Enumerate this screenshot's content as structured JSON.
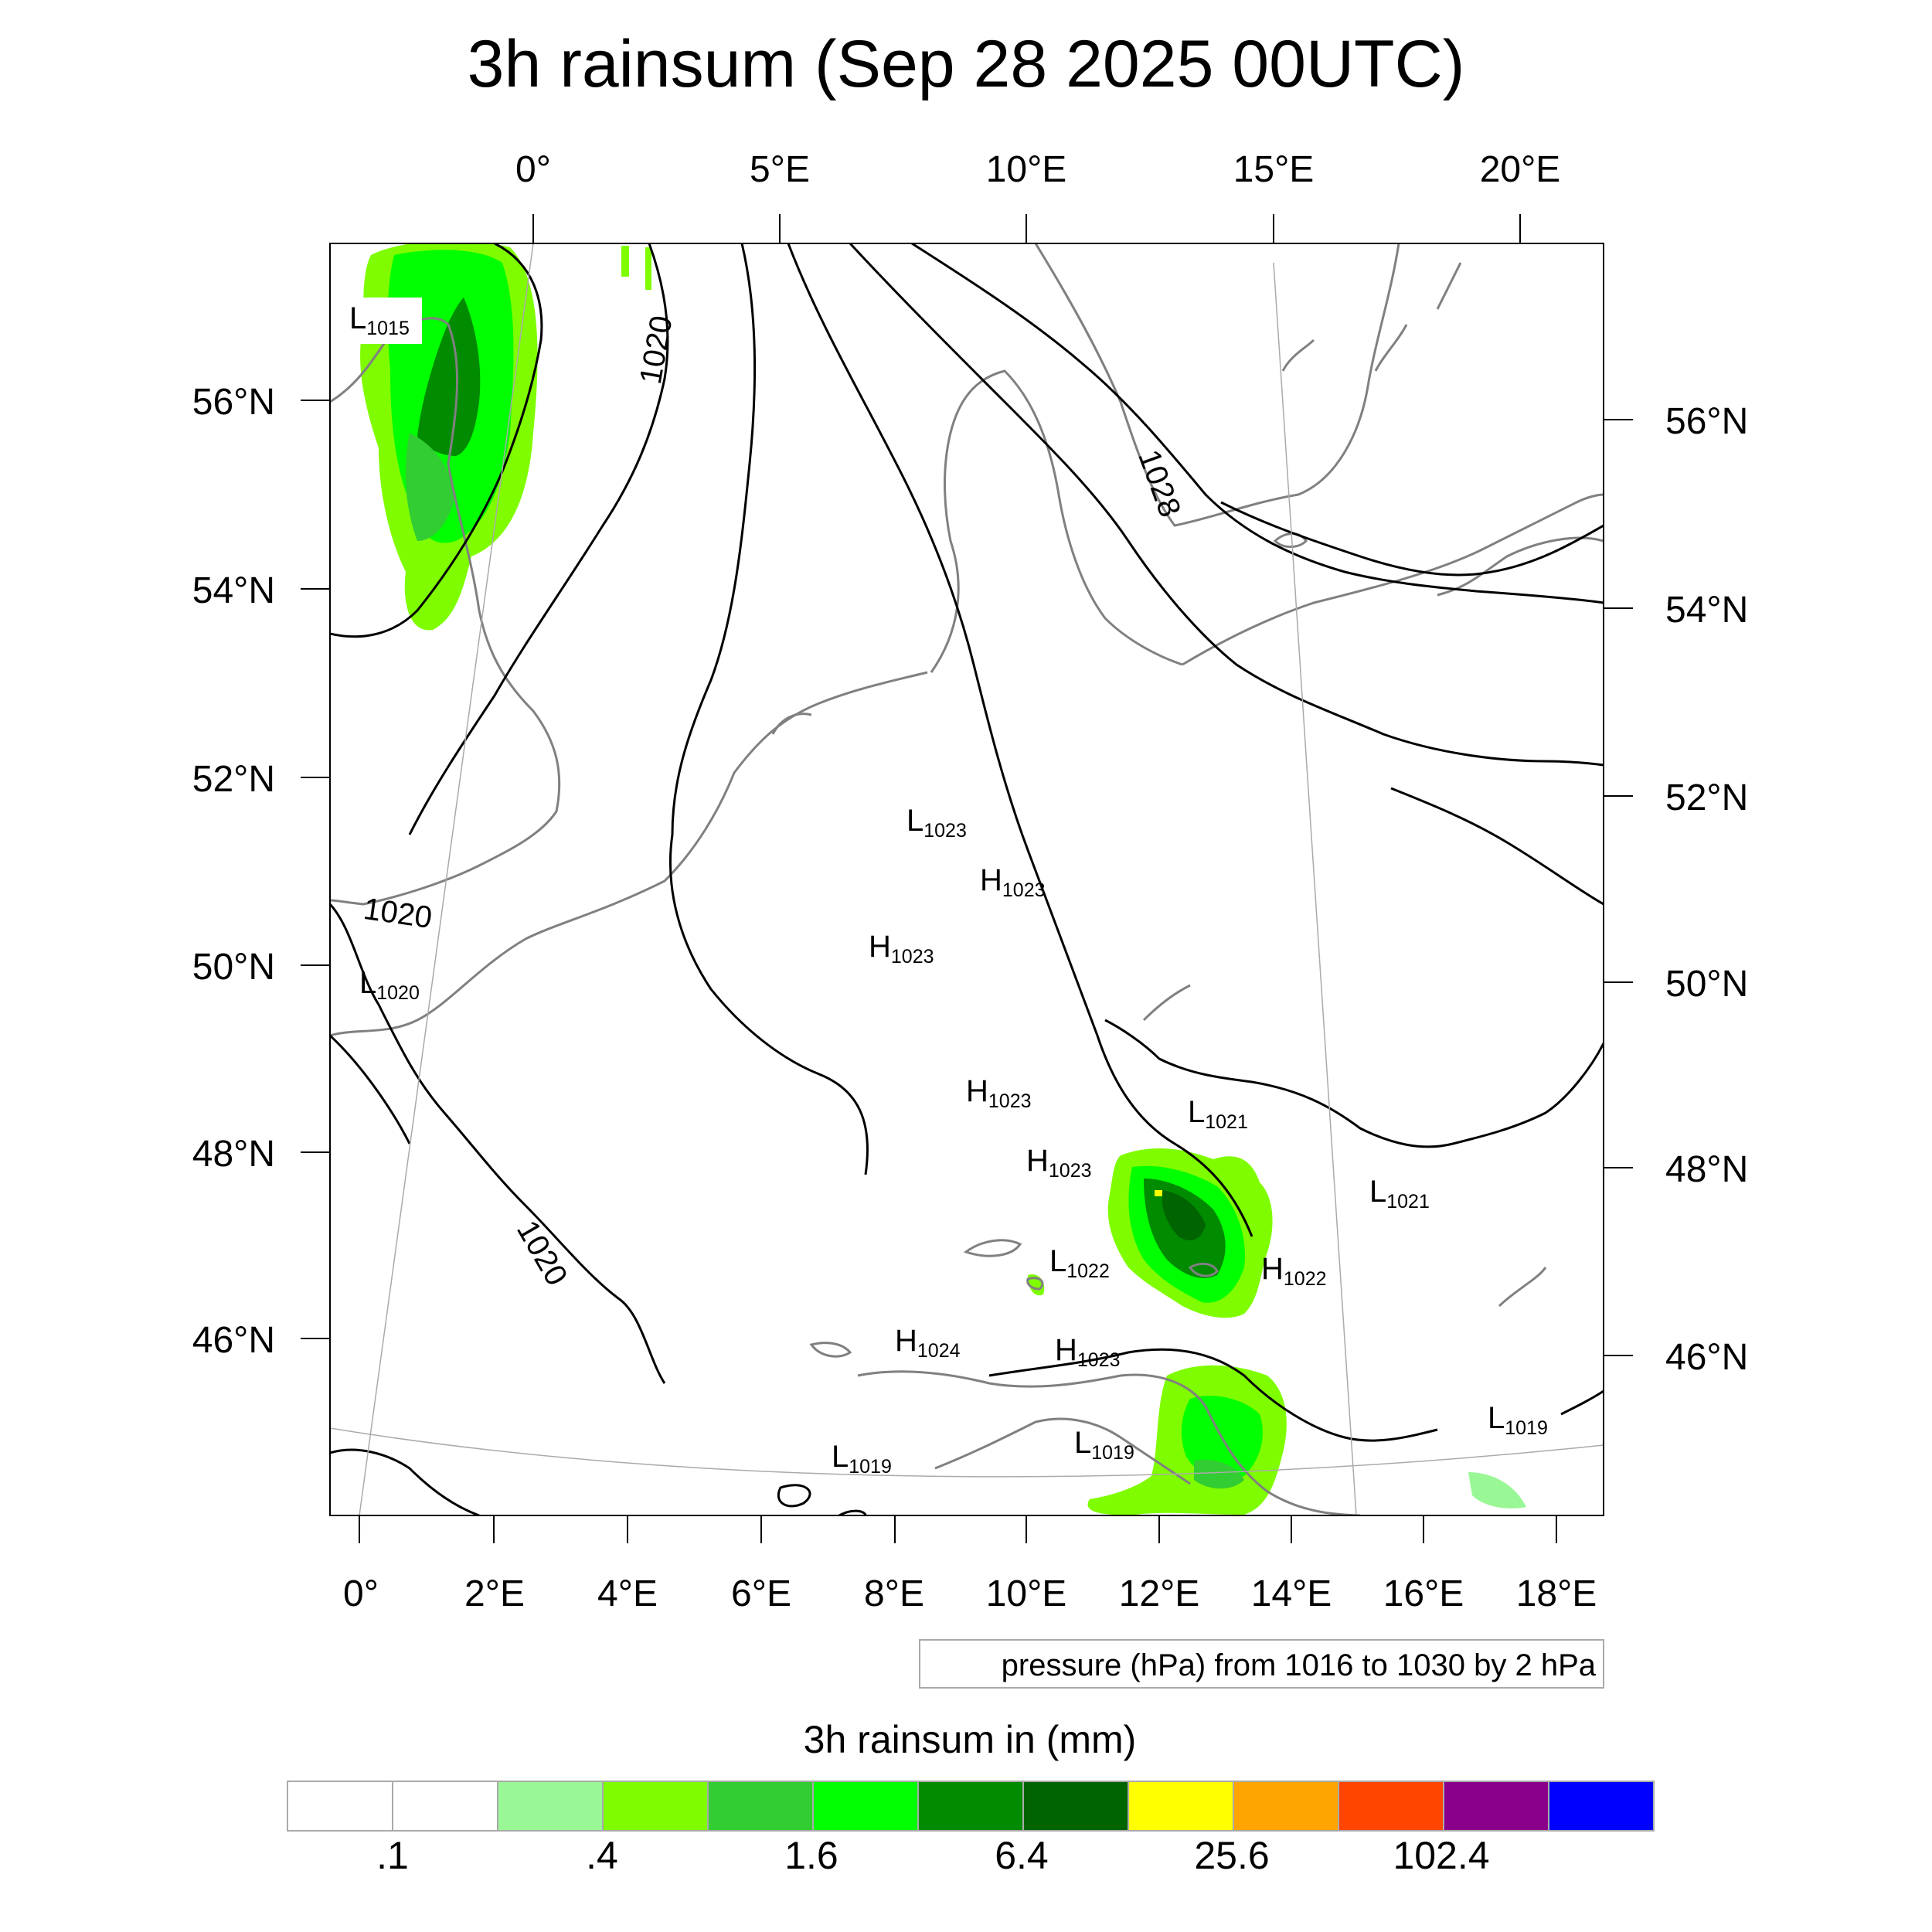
{
  "title": "3h rainsum (Sep 28 2025 00UTC)",
  "top_lon_labels": [
    "0°",
    "5°E",
    "10°E",
    "15°E",
    "20°E"
  ],
  "bottom_lon_labels": [
    "0°",
    "2°E",
    "4°E",
    "6°E",
    "8°E",
    "10°E",
    "12°E",
    "14°E",
    "16°E",
    "18°E"
  ],
  "left_lat_labels": [
    "56°N",
    "54°N",
    "52°N",
    "50°N",
    "48°N",
    "46°N"
  ],
  "right_lat_labels": [
    "56°N",
    "54°N",
    "52°N",
    "50°N",
    "48°N",
    "46°N"
  ],
  "isobar_labels": [
    "1020",
    "1020",
    "1020",
    "1028"
  ],
  "pressure_centers": [
    {
      "type": "L",
      "value": "1015"
    },
    {
      "type": "L",
      "value": "1023"
    },
    {
      "type": "H",
      "value": "1023"
    },
    {
      "type": "H",
      "value": "1023"
    },
    {
      "type": "L",
      "value": "1020"
    },
    {
      "type": "H",
      "value": "1023"
    },
    {
      "type": "L",
      "value": "1021"
    },
    {
      "type": "H",
      "value": "1023"
    },
    {
      "type": "L",
      "value": "1021"
    },
    {
      "type": "L",
      "value": "1022"
    },
    {
      "type": "H",
      "value": "1022"
    },
    {
      "type": "H",
      "value": "1024"
    },
    {
      "type": "H",
      "value": "1023"
    },
    {
      "type": "L",
      "value": "1019"
    },
    {
      "type": "L",
      "value": "1019"
    },
    {
      "type": "L",
      "value": "1019"
    }
  ],
  "pressure_note": "pressure (hPa) from 1016 to 1030 by 2 hPa",
  "colorbar": {
    "title": "3h rainsum in (mm)",
    "colors": [
      "#ffffff",
      "#ffffff",
      "#99f895",
      "#7ffc00",
      "#32cd32",
      "#00ff00",
      "#008b00",
      "#006400",
      "#ffff00",
      "#ffa500",
      "#ff4500",
      "#8b008b",
      "#0000ff"
    ],
    "labels": [
      ".1",
      ".4",
      "1.6",
      "6.4",
      "25.6",
      "102.4"
    ]
  },
  "colors": {
    "rain_light": "#99f895",
    "rain_chartreuse": "#7ffc00",
    "rain_lime": "#32cd32",
    "rain_green": "#00ff00",
    "rain_dark": "#008b00",
    "rain_darker": "#006400",
    "coast": "#808080",
    "isobar": "#000000"
  }
}
